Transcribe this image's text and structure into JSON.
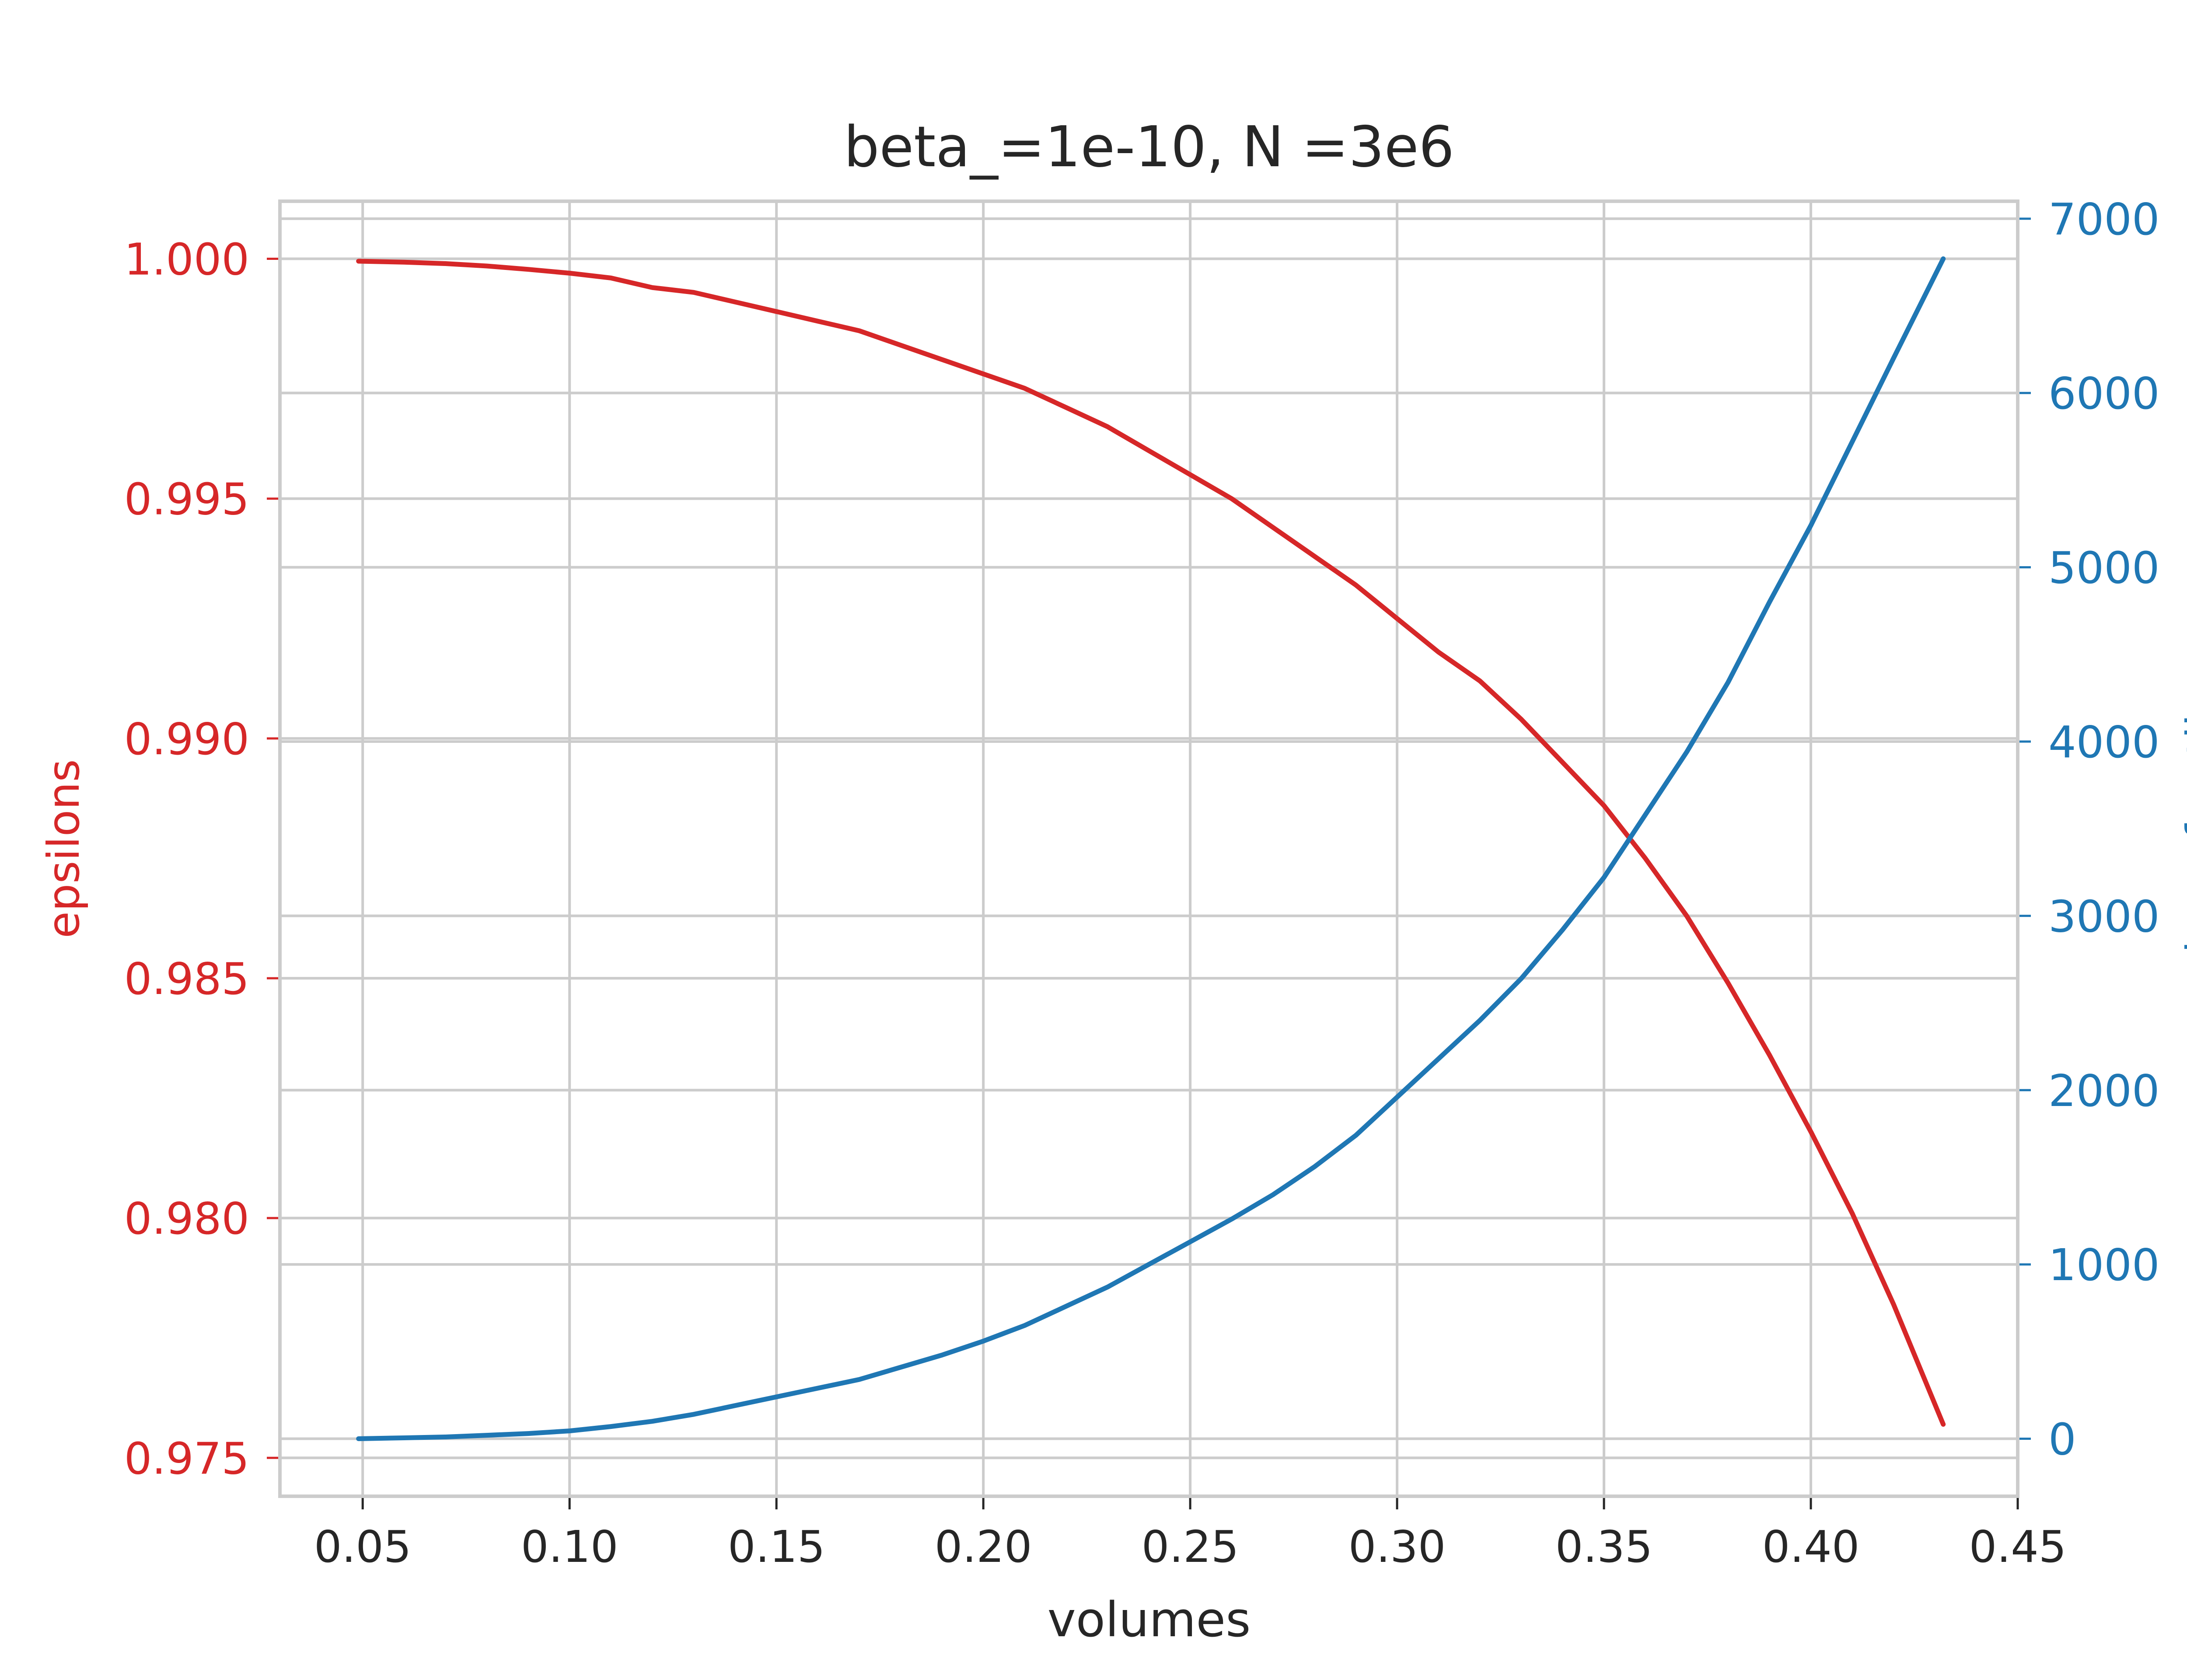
{
  "chart_data": {
    "type": "line",
    "title": "beta_=1e-10, N =3e6",
    "xlabel": "volumes",
    "ylabel_left": "epsilons",
    "ylabel_right": "number of outliers",
    "xlim": [
      0.03,
      0.45
    ],
    "ylim_left": [
      0.9742,
      1.0012
    ],
    "ylim_right": [
      -330,
      7100
    ],
    "x_ticks": [
      "0.05",
      "0.10",
      "0.15",
      "0.20",
      "0.25",
      "0.30",
      "0.35",
      "0.40",
      "0.45"
    ],
    "y_left_ticks": [
      "0.975",
      "0.980",
      "0.985",
      "0.990",
      "0.995",
      "1.000"
    ],
    "y_right_ticks": [
      "0",
      "1000",
      "2000",
      "3000",
      "4000",
      "5000",
      "6000",
      "7000"
    ],
    "grid": true,
    "colors": {
      "left": "#d62728",
      "right": "#1f77b4",
      "grid": "#cccccc",
      "text": "#262626"
    },
    "series": [
      {
        "name": "epsilons",
        "axis": "left",
        "x": [
          0.049,
          0.06,
          0.07,
          0.08,
          0.09,
          0.1,
          0.11,
          0.12,
          0.13,
          0.14,
          0.15,
          0.16,
          0.17,
          0.18,
          0.19,
          0.2,
          0.21,
          0.22,
          0.23,
          0.24,
          0.25,
          0.26,
          0.27,
          0.28,
          0.29,
          0.3,
          0.31,
          0.32,
          0.33,
          0.34,
          0.35,
          0.36,
          0.37,
          0.38,
          0.39,
          0.4,
          0.41,
          0.42,
          0.432
        ],
        "values": [
          0.99995,
          0.99993,
          0.9999,
          0.99985,
          0.99978,
          0.9997,
          0.9996,
          0.9994,
          0.9993,
          0.9991,
          0.9989,
          0.9987,
          0.9985,
          0.9982,
          0.9979,
          0.9976,
          0.9973,
          0.9969,
          0.9965,
          0.996,
          0.9955,
          0.995,
          0.9944,
          0.9938,
          0.9932,
          0.9925,
          0.9918,
          0.9912,
          0.9904,
          0.9895,
          0.9886,
          0.9875,
          0.9863,
          0.9849,
          0.9834,
          0.9818,
          0.9801,
          0.9782,
          0.9757
        ]
      },
      {
        "name": "number of outliers",
        "axis": "right",
        "x": [
          0.049,
          0.06,
          0.07,
          0.08,
          0.09,
          0.1,
          0.11,
          0.12,
          0.13,
          0.14,
          0.15,
          0.16,
          0.17,
          0.18,
          0.19,
          0.2,
          0.21,
          0.22,
          0.23,
          0.24,
          0.25,
          0.26,
          0.27,
          0.28,
          0.29,
          0.3,
          0.31,
          0.32,
          0.33,
          0.34,
          0.35,
          0.36,
          0.37,
          0.38,
          0.39,
          0.4,
          0.41,
          0.42,
          0.432
        ],
        "values": [
          0,
          5,
          10,
          20,
          30,
          45,
          70,
          100,
          140,
          190,
          240,
          290,
          340,
          410,
          480,
          560,
          650,
          760,
          870,
          1000,
          1130,
          1260,
          1400,
          1560,
          1740,
          1960,
          2180,
          2400,
          2640,
          2920,
          3220,
          3580,
          3940,
          4340,
          4800,
          5240,
          5720,
          6200,
          6770
        ]
      }
    ]
  }
}
